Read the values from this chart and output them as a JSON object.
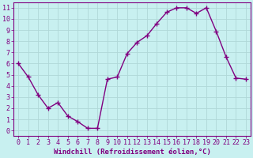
{
  "x": [
    0,
    1,
    2,
    3,
    4,
    5,
    6,
    7,
    8,
    9,
    10,
    11,
    12,
    13,
    14,
    15,
    16,
    17,
    18,
    19,
    20,
    21,
    22,
    23
  ],
  "y": [
    6,
    4.8,
    3.2,
    2.0,
    2.5,
    1.3,
    0.8,
    0.2,
    0.2,
    4.6,
    4.8,
    6.9,
    7.9,
    8.5,
    9.6,
    10.6,
    11.0,
    11.0,
    10.5,
    11.0,
    8.9,
    6.6,
    4.7,
    4.6
  ],
  "line_color": "#800080",
  "marker": "+",
  "marker_size": 4,
  "line_width": 1.0,
  "bg_color": "#c8f0f0",
  "plot_bg_color": "#c8f0f0",
  "xlabel": "Windchill (Refroidissement éolien,°C)",
  "xlabel_color": "#800080",
  "xlabel_fontsize": 6.5,
  "xtick_labels": [
    "0",
    "1",
    "2",
    "3",
    "4",
    "5",
    "6",
    "7",
    "8",
    "9",
    "10",
    "11",
    "12",
    "13",
    "14",
    "15",
    "16",
    "17",
    "18",
    "19",
    "20",
    "21",
    "22",
    "23"
  ],
  "ytick_labels": [
    "0",
    "1",
    "2",
    "3",
    "4",
    "5",
    "6",
    "7",
    "8",
    "9",
    "10",
    "11"
  ],
  "xlim": [
    -0.5,
    23.5
  ],
  "ylim": [
    -0.5,
    11.5
  ],
  "grid_color": "#b0d8d8",
  "tick_color": "#800080",
  "tick_fontsize": 6.0,
  "spine_color": "#800080"
}
